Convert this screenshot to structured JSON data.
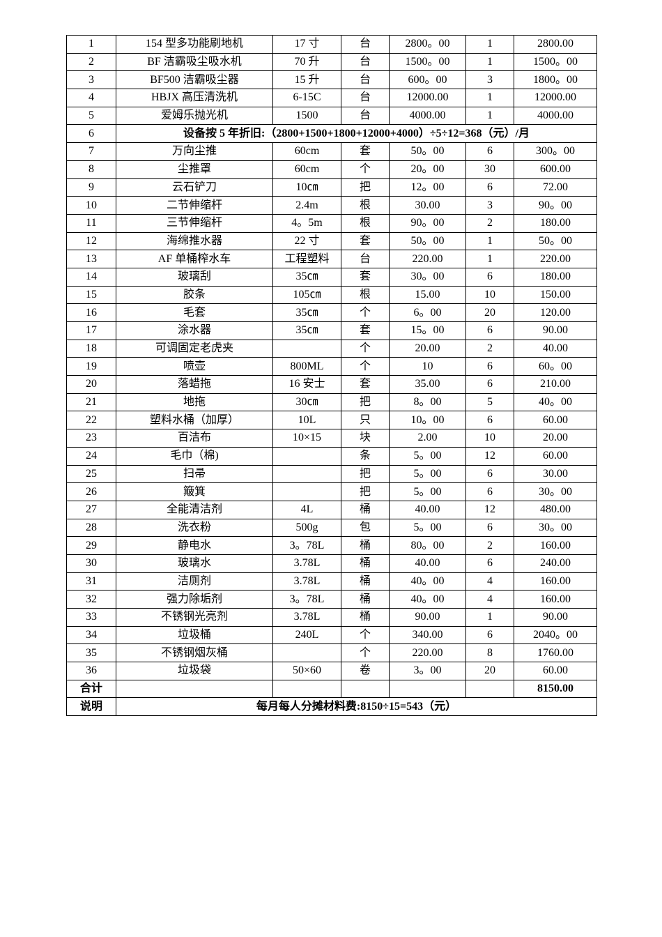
{
  "table": {
    "rows": [
      [
        "1",
        "154 型多功能刷地机",
        "17 寸",
        "台",
        "2800。00",
        "1",
        "2800.00"
      ],
      [
        "2",
        "BF 洁霸吸尘吸水机",
        "70 升",
        "台",
        "1500。00",
        "1",
        "1500。00"
      ],
      [
        "3",
        "BF500 洁霸吸尘器",
        "15 升",
        "台",
        "600。00",
        "3",
        "1800。00"
      ],
      [
        "4",
        "HBJX 高压清洗机",
        "6-15C",
        "台",
        "12000.00",
        "1",
        "12000.00"
      ],
      [
        "5",
        "爱姆乐抛光机",
        "1500",
        "台",
        "4000.00",
        "1",
        "4000.00"
      ],
      [
        "6",
        "设备按 5 年折旧:（2800+1500+1800+12000+4000）÷5÷12=368（元）/月"
      ],
      [
        "7",
        "万向尘推",
        "60cm",
        "套",
        "50。00",
        "6",
        "300。00"
      ],
      [
        "8",
        "尘推罩",
        "60cm",
        "个",
        "20。00",
        "30",
        "600.00"
      ],
      [
        "9",
        "云石铲刀",
        "10㎝",
        "把",
        "12。00",
        "6",
        "72.00"
      ],
      [
        "10",
        "二节伸缩杆",
        "2.4m",
        "根",
        "30.00",
        "3",
        "90。00"
      ],
      [
        "11",
        "三节伸缩杆",
        "4。5m",
        "根",
        "90。00",
        "2",
        "180.00"
      ],
      [
        "12",
        "海绵推水器",
        "22 寸",
        "套",
        "50。00",
        "1",
        "50。00"
      ],
      [
        "13",
        "AF 单桶榨水车",
        "工程塑料",
        "台",
        "220.00",
        "1",
        "220.00"
      ],
      [
        "14",
        "玻璃刮",
        "35㎝",
        "套",
        "30。00",
        "6",
        "180.00"
      ],
      [
        "15",
        "胶条",
        "105㎝",
        "根",
        "15.00",
        "10",
        "150.00"
      ],
      [
        "16",
        "毛套",
        "35㎝",
        "个",
        "6。00",
        "20",
        "120.00"
      ],
      [
        "17",
        "涂水器",
        "35㎝",
        "套",
        "15。00",
        "6",
        "90.00"
      ],
      [
        "18",
        "可调固定老虎夹",
        "",
        "个",
        "20.00",
        "2",
        "40.00"
      ],
      [
        "19",
        "喷壶",
        "800ML",
        "个",
        "10",
        "6",
        "60。00"
      ],
      [
        "20",
        "落蜡拖",
        "16 安士",
        "套",
        "35.00",
        "6",
        "210.00"
      ],
      [
        "21",
        "地拖",
        "30㎝",
        "把",
        "8。00",
        "5",
        "40。00"
      ],
      [
        "22",
        "塑料水桶（加厚）",
        "10L",
        "只",
        "10。00",
        "6",
        "60.00"
      ],
      [
        "23",
        "百洁布",
        "10×15",
        "块",
        "2.00",
        "10",
        "20.00"
      ],
      [
        "24",
        "毛巾（棉)",
        "",
        "条",
        "5。00",
        "12",
        "60.00"
      ],
      [
        "25",
        "扫帚",
        "",
        "把",
        "5。00",
        "6",
        "30.00"
      ],
      [
        "26",
        "簸箕",
        "",
        "把",
        "5。00",
        "6",
        "30。00"
      ],
      [
        "27",
        "全能清洁剂",
        "4L",
        "桶",
        "40.00",
        "12",
        "480.00"
      ],
      [
        "28",
        "洗衣粉",
        "500g",
        "包",
        "5。00",
        "6",
        "30。00"
      ],
      [
        "29",
        "静电水",
        "3。78L",
        "桶",
        "80。00",
        "2",
        "160.00"
      ],
      [
        "30",
        "玻璃水",
        "3.78L",
        "桶",
        "40.00",
        "6",
        "240.00"
      ],
      [
        "31",
        "洁厕剂",
        "3.78L",
        "桶",
        "40。00",
        "4",
        "160.00"
      ],
      [
        "32",
        "强力除垢剂",
        "3。78L",
        "桶",
        "40。00",
        "4",
        "160.00"
      ],
      [
        "33",
        "不锈钢光亮剂",
        "3.78L",
        "桶",
        "90.00",
        "1",
        "90.00"
      ],
      [
        "34",
        "垃圾桶",
        "240L",
        "个",
        "340.00",
        "6",
        "2040。00"
      ],
      [
        "35",
        "不锈钢烟灰桶",
        "",
        "个",
        "220.00",
        "8",
        "1760.00"
      ],
      [
        "36",
        "垃圾袋",
        "50×60",
        "卷",
        "3。00",
        "20",
        "60.00"
      ]
    ],
    "total": {
      "label": "合计",
      "value": "8150.00"
    },
    "note": {
      "label": "说明",
      "text": "每月每人分摊材料费:8150÷15=543（元）"
    }
  }
}
